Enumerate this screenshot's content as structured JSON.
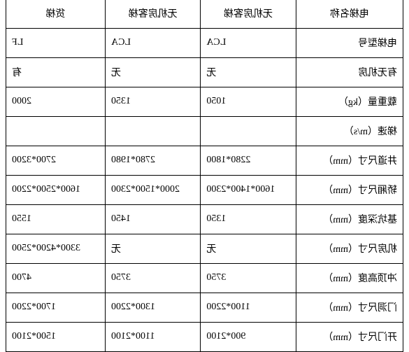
{
  "table": {
    "headers": [
      "电梯名称",
      "无机房客梯",
      "无机房客梯",
      "货梯"
    ],
    "rows": [
      {
        "label": "电梯型号",
        "values": [
          "LCA",
          "LCA",
          "LF"
        ]
      },
      {
        "label": "有无机房",
        "values": [
          "无",
          "无",
          "有"
        ]
      },
      {
        "label": "载重量（kg）",
        "values": [
          "1050",
          "1350",
          "2000"
        ]
      },
      {
        "label": "梯速（m/s）",
        "values": [
          "",
          "",
          ""
        ]
      },
      {
        "label": "井道尺寸（mm）",
        "values": [
          "2280*1800",
          "2780*1980",
          "2700*3200"
        ]
      },
      {
        "label": "轿厢尺寸（mm）",
        "values": [
          "1600*1400*2300",
          "2000*1500*2300",
          "1600*2500*2200"
        ]
      },
      {
        "label": "基坑深度（mm）",
        "values": [
          "1350",
          "1450",
          "1550"
        ]
      },
      {
        "label": "机房尺寸（mm）",
        "values": [
          "无",
          "无",
          "3300*4200*2500"
        ]
      },
      {
        "label": "冲顶高度（mm）",
        "values": [
          "3750",
          "3750",
          "4700"
        ]
      },
      {
        "label": "门洞尺寸（mm）",
        "values": [
          "1100*2200",
          "1300*2200",
          "1700*2200"
        ]
      },
      {
        "label": "开门尺寸（mm）",
        "values": [
          "900*2100",
          "1100*2100",
          "1500*2100"
        ]
      }
    ],
    "border_color": "#000000",
    "background_color": "#ffffff",
    "text_color": "#000000",
    "font_size": 14,
    "mirrored": true
  }
}
